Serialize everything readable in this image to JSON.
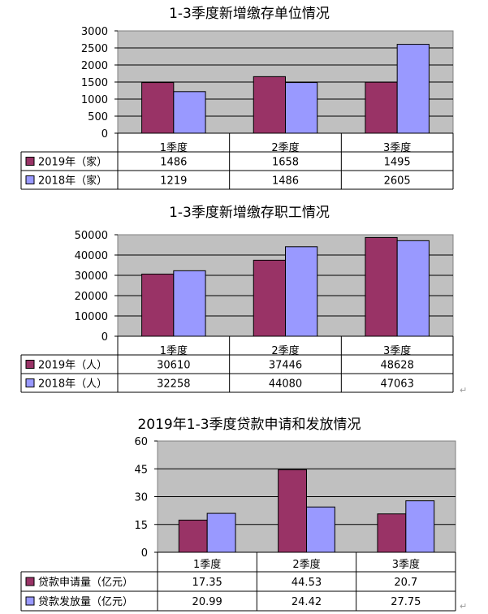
{
  "chart_data": [
    {
      "type": "bar",
      "title": "1-3季度新增缴存单位情况",
      "categories": [
        "1季度",
        "2季度",
        "3季度"
      ],
      "series": [
        {
          "name": "2019年（家）",
          "values": [
            1486,
            1658,
            1495
          ],
          "color": "#993366"
        },
        {
          "name": "2018年（家）",
          "values": [
            1219,
            1486,
            2605
          ],
          "color": "#9999ff"
        }
      ],
      "ylim": [
        0,
        3000
      ],
      "yticks": [
        0,
        500,
        1000,
        1500,
        2000,
        2500,
        3000
      ],
      "value_labels": [
        [
          "1486",
          "1658",
          "1495"
        ],
        [
          "1219",
          "1486",
          "2605"
        ]
      ],
      "grid": true,
      "plot_background": "#c0c0c0",
      "legend": "data table below plot"
    },
    {
      "type": "bar",
      "title": "1-3季度新增缴存职工情况",
      "categories": [
        "1季度",
        "2季度",
        "3季度"
      ],
      "series": [
        {
          "name": "2019年（人）",
          "values": [
            30610,
            37446,
            48628
          ],
          "color": "#993366"
        },
        {
          "name": "2018年（人）",
          "values": [
            32258,
            44080,
            47063
          ],
          "color": "#9999ff"
        }
      ],
      "ylim": [
        0,
        50000
      ],
      "yticks": [
        0,
        10000,
        20000,
        30000,
        40000,
        50000
      ],
      "value_labels": [
        [
          "30610",
          "37446",
          "48628"
        ],
        [
          "32258",
          "44080",
          "47063"
        ]
      ],
      "grid": true,
      "plot_background": "#c0c0c0",
      "legend": "data table below plot"
    },
    {
      "type": "bar",
      "title": "2019年1-3季度贷款申请和发放情况",
      "categories": [
        "1季度",
        "2季度",
        "3季度"
      ],
      "series": [
        {
          "name": "贷款申请量（亿元）",
          "values": [
            17.35,
            44.53,
            20.7
          ],
          "color": "#993366"
        },
        {
          "name": "贷款发放量（亿元）",
          "values": [
            20.99,
            24.42,
            27.75
          ],
          "color": "#9999ff"
        }
      ],
      "ylim": [
        0,
        60
      ],
      "yticks": [
        0,
        15,
        30,
        45,
        60
      ],
      "value_labels": [
        [
          "17.35",
          "44.53",
          "20.7"
        ],
        [
          "20.99",
          "24.42",
          "27.75"
        ]
      ],
      "grid": true,
      "plot_background": "#c0c0c0",
      "legend": "data table below plot"
    }
  ],
  "return_marks": [
    "↵",
    "↵"
  ]
}
